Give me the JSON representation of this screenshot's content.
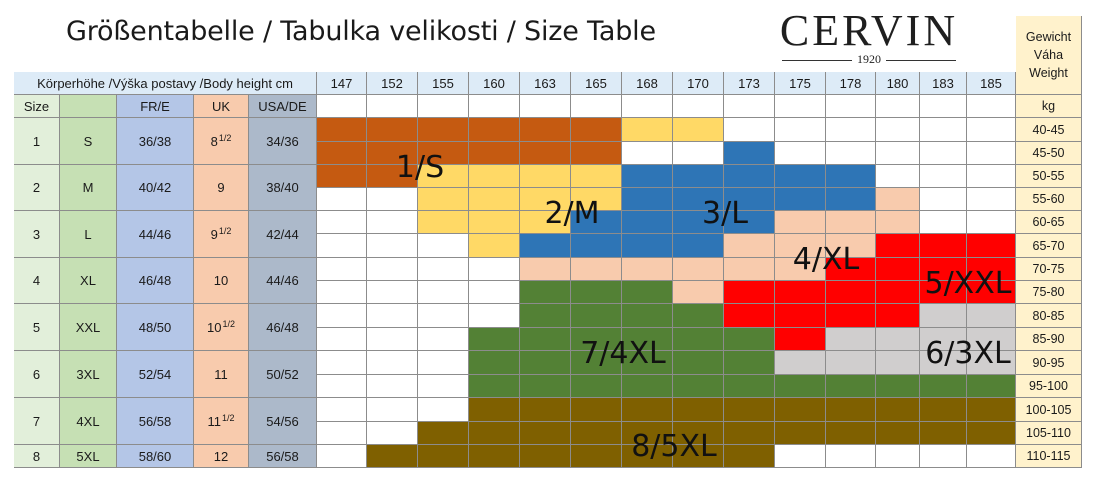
{
  "title": "Größentabelle / Tabulka velikosti / Size Table",
  "logo": {
    "name": "CERVIN",
    "year": "1920"
  },
  "header": {
    "body_height_label": "Körperhöhe /Výška postavy /Body height  cm",
    "heights": [
      "147",
      "152",
      "155",
      "160",
      "163",
      "165",
      "168",
      "170",
      "173",
      "175",
      "178",
      "180",
      "183",
      "185"
    ],
    "weight_header": [
      "Gewicht",
      "Váha",
      "Weight"
    ],
    "kg_label": "kg"
  },
  "columns": {
    "size": "Size",
    "fr": "FR/E",
    "uk": "UK",
    "usa": "USA/DE"
  },
  "sizes": [
    {
      "num": "1",
      "letter": "S",
      "fr": "36/38",
      "uk": "8",
      "uk_frac": "1/2",
      "usa": "34/36"
    },
    {
      "num": "2",
      "letter": "M",
      "fr": "40/42",
      "uk": "9",
      "uk_frac": "",
      "usa": "38/40"
    },
    {
      "num": "3",
      "letter": "L",
      "fr": "44/46",
      "uk": "9",
      "uk_frac": "1/2",
      "usa": "42/44"
    },
    {
      "num": "4",
      "letter": "XL",
      "fr": "46/48",
      "uk": "10",
      "uk_frac": "",
      "usa": "44/46"
    },
    {
      "num": "5",
      "letter": "XXL",
      "fr": "48/50",
      "uk": "10",
      "uk_frac": "1/2",
      "usa": "46/48"
    },
    {
      "num": "6",
      "letter": "3XL",
      "fr": "52/54",
      "uk": "11",
      "uk_frac": "",
      "usa": "50/52"
    },
    {
      "num": "7",
      "letter": "4XL",
      "fr": "56/58",
      "uk": "11",
      "uk_frac": "1/2",
      "usa": "54/56"
    },
    {
      "num": "8",
      "letter": "5XL",
      "fr": "58/60",
      "uk": "12",
      "uk_frac": "",
      "usa": "56/58"
    }
  ],
  "weights": [
    "40-45",
    "45-50",
    "50-55",
    "55-60",
    "60-65",
    "65-70",
    "70-75",
    "75-80",
    "80-85",
    "85-90",
    "90-95",
    "95-100",
    "100-105",
    "105-110",
    "110-115"
  ],
  "grid_codes": [
    "OOOOOOYY......",
    "OOOOOO..B.....",
    "OOYYYYBBBBB...",
    "..YYYYBBBBBP..",
    "..YYYBBBBPPP..",
    "...YBBBBPPPRRR",
    "....PPPPPPRRRR",
    "....GGGPRRRRRR",
    "....GGGGRRRRLL",
    "...GGGGGGRLLLL",
    "...GGGGGGLLLLL",
    "...GGGGGGGGGGG",
    "...DDDDDDDDDDD",
    "..DDDDDDDDDDDD",
    ".DDDDDDDD....."
  ],
  "zones": [
    {
      "code": "O",
      "label": "1/S",
      "color": "#c55a11"
    },
    {
      "code": "Y",
      "label": "2/M",
      "color": "#ffd966"
    },
    {
      "code": "B",
      "label": "3/L",
      "color": "#2e75b6"
    },
    {
      "code": "P",
      "label": "4/XL",
      "color": "#f8cbad"
    },
    {
      "code": "R",
      "label": "5/XXL",
      "color": "#ff0000"
    },
    {
      "code": "L",
      "label": "6/3XL",
      "color": "#d0cece"
    },
    {
      "code": "G",
      "label": "7/4XL",
      "color": "#538135"
    },
    {
      "code": "D",
      "label": "8/5XL",
      "color": "#7f6000"
    }
  ],
  "colors": {
    "size_num": "#e2efda",
    "letter": "#c6e0b4",
    "fr": "#b4c6e7",
    "uk": "#f8cbad",
    "usa": "#acb9ca",
    "weight": "#fff2cc",
    "header": "#ddebf7",
    "empty": "#ffffff"
  }
}
